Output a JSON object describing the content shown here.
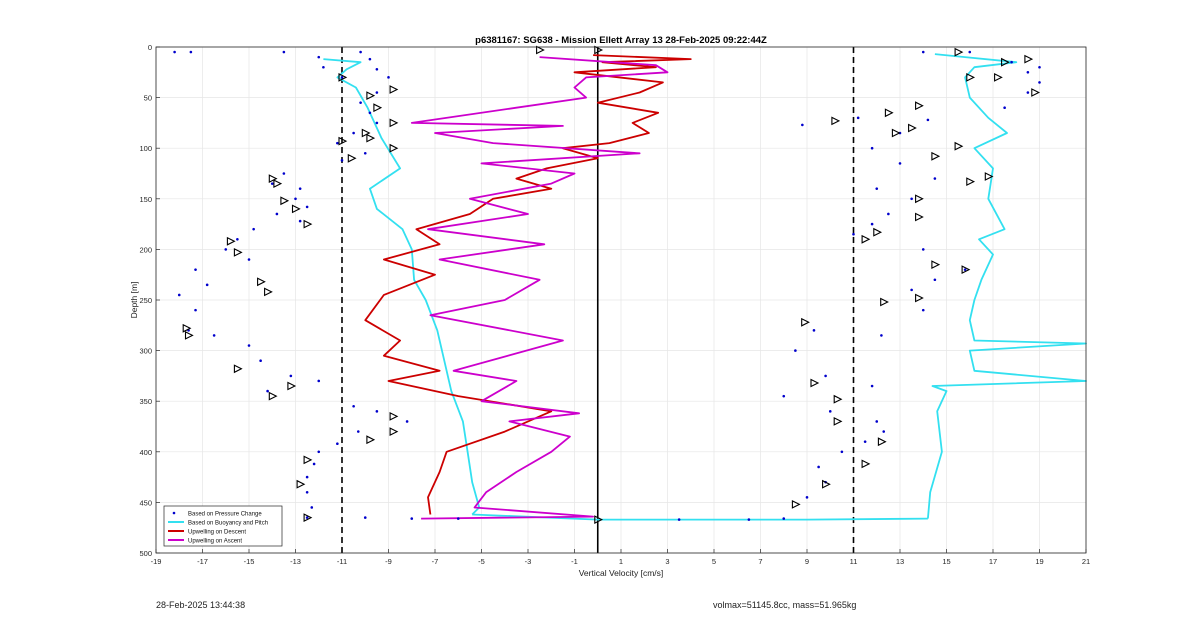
{
  "chart_data": {
    "type": "line",
    "title": "p6381167: SG638 - Mission Ellett Array 13 28-Feb-2025 09:22:44Z",
    "xlabel": "Vertical Velocity [cm/s]",
    "ylabel": "Depth [m]",
    "xlim": [
      -19,
      21
    ],
    "ylim": [
      0,
      500
    ],
    "y_reversed": true,
    "xticks": [
      "-19",
      "-17",
      "-15",
      "-13",
      "-11",
      "-9",
      "-7",
      "-5",
      "-3",
      "-1",
      "1",
      "3",
      "5",
      "7",
      "9",
      "11",
      "13",
      "15",
      "17",
      "19",
      "21"
    ],
    "yticks": [
      "0",
      "50",
      "100",
      "150",
      "200",
      "250",
      "300",
      "350",
      "400",
      "450",
      "500"
    ],
    "grid": true,
    "legend_position": "bottom-left",
    "legend": [
      {
        "label": "Based on Pressure Change",
        "color": "#0000cc",
        "style": "dot"
      },
      {
        "label": "Based on Buoyancy and Pitch",
        "color": "#33e0f0",
        "style": "line"
      },
      {
        "label": "Upwelling on Descent",
        "color": "#cc0000",
        "style": "line"
      },
      {
        "label": "Upwelling on Ascent",
        "color": "#cc00cc",
        "style": "line"
      }
    ],
    "reference_lines": {
      "dashed_x": [
        -11,
        11
      ],
      "solid_x": [
        0
      ]
    },
    "series": [
      {
        "name": "Based on Buoyancy and Pitch",
        "segment": "descent",
        "color": "#33e0f0",
        "points": [
          [
            -11.8,
            12
          ],
          [
            -10.2,
            15
          ],
          [
            -10.8,
            22
          ],
          [
            -11.2,
            30
          ],
          [
            -10.4,
            40
          ],
          [
            -9.9,
            60
          ],
          [
            -9.3,
            90
          ],
          [
            -8.5,
            120
          ],
          [
            -9.8,
            140
          ],
          [
            -9.5,
            160
          ],
          [
            -8.4,
            180
          ],
          [
            -8.0,
            200
          ],
          [
            -7.9,
            230
          ],
          [
            -7.4,
            250
          ],
          [
            -6.9,
            280
          ],
          [
            -6.6,
            310
          ],
          [
            -6.3,
            340
          ],
          [
            -5.8,
            370
          ],
          [
            -5.6,
            400
          ],
          [
            -5.4,
            430
          ],
          [
            -5.1,
            455
          ],
          [
            -5.4,
            462
          ]
        ]
      },
      {
        "name": "Based on Buoyancy and Pitch",
        "segment": "bottom",
        "color": "#33e0f0",
        "points": [
          [
            -5.4,
            462
          ],
          [
            0,
            467
          ],
          [
            9,
            467
          ],
          [
            14.2,
            466
          ]
        ]
      },
      {
        "name": "Based on Buoyancy and Pitch",
        "segment": "ascent",
        "color": "#33e0f0",
        "points": [
          [
            14.2,
            466
          ],
          [
            14.3,
            440
          ],
          [
            14.8,
            400
          ],
          [
            14.6,
            360
          ],
          [
            15.0,
            340
          ],
          [
            14.4,
            335
          ],
          [
            21,
            330
          ],
          [
            16.2,
            320
          ],
          [
            16.0,
            300
          ],
          [
            21,
            293
          ],
          [
            16.2,
            290
          ],
          [
            16.0,
            270
          ],
          [
            16.2,
            250
          ],
          [
            16.5,
            230
          ],
          [
            17.0,
            205
          ],
          [
            16.4,
            190
          ],
          [
            17.5,
            180
          ],
          [
            16.8,
            150
          ],
          [
            17.0,
            120
          ],
          [
            16.2,
            100
          ],
          [
            17.6,
            85
          ],
          [
            16.8,
            70
          ],
          [
            16.0,
            50
          ],
          [
            15.8,
            30
          ],
          [
            16.2,
            20
          ],
          [
            18.0,
            15
          ],
          [
            15.8,
            10
          ],
          [
            14.5,
            7
          ]
        ]
      },
      {
        "name": "Upwelling on Descent",
        "color": "#cc0000",
        "points": [
          [
            -0.2,
            8
          ],
          [
            4,
            12
          ],
          [
            0.2,
            15
          ],
          [
            2.5,
            20
          ],
          [
            -1,
            25
          ],
          [
            2.8,
            35
          ],
          [
            1.8,
            45
          ],
          [
            0,
            55
          ],
          [
            2.6,
            65
          ],
          [
            1.5,
            75
          ],
          [
            2.2,
            85
          ],
          [
            0.5,
            95
          ],
          [
            -1.5,
            100
          ],
          [
            0,
            110
          ],
          [
            -2.2,
            120
          ],
          [
            -3.5,
            130
          ],
          [
            -2.0,
            140
          ],
          [
            -4.5,
            150
          ],
          [
            -5.5,
            165
          ],
          [
            -7.8,
            180
          ],
          [
            -6.8,
            195
          ],
          [
            -9.2,
            210
          ],
          [
            -7.0,
            225
          ],
          [
            -9.2,
            245
          ],
          [
            -10.0,
            270
          ],
          [
            -8.5,
            290
          ],
          [
            -9.2,
            305
          ],
          [
            -6.8,
            320
          ],
          [
            -9.0,
            330
          ],
          [
            -6.0,
            345
          ],
          [
            -2.0,
            360
          ],
          [
            -4.0,
            380
          ],
          [
            -6.5,
            400
          ],
          [
            -6.8,
            420
          ],
          [
            -7.3,
            445
          ],
          [
            -7.2,
            462
          ]
        ]
      },
      {
        "name": "Upwelling on Ascent",
        "color": "#cc00cc",
        "points": [
          [
            -7.6,
            466
          ],
          [
            -0.2,
            464
          ],
          [
            -5.3,
            455
          ],
          [
            -4.8,
            440
          ],
          [
            -3.5,
            420
          ],
          [
            -2.0,
            400
          ],
          [
            -1.2,
            385
          ],
          [
            -3.8,
            370
          ],
          [
            -0.8,
            362
          ],
          [
            -5.0,
            350
          ],
          [
            -3.5,
            330
          ],
          [
            -6.2,
            320
          ],
          [
            -1.5,
            290
          ],
          [
            -7.2,
            265
          ],
          [
            -4.0,
            250
          ],
          [
            -2.5,
            230
          ],
          [
            -6.8,
            210
          ],
          [
            -2.3,
            195
          ],
          [
            -7.3,
            180
          ],
          [
            -3.0,
            165
          ],
          [
            -5.5,
            150
          ],
          [
            -2.0,
            135
          ],
          [
            -1.0,
            125
          ],
          [
            -5.0,
            115
          ],
          [
            1.8,
            105
          ],
          [
            -4.5,
            95
          ],
          [
            -7.0,
            85
          ],
          [
            -1.5,
            78
          ],
          [
            -8.0,
            75
          ],
          [
            -3.5,
            60
          ],
          [
            -0.5,
            50
          ],
          [
            -1.0,
            40
          ],
          [
            -0.5,
            30
          ],
          [
            3.0,
            25
          ],
          [
            2.5,
            18
          ],
          [
            -2.5,
            10
          ]
        ]
      }
    ],
    "scatter": {
      "name": "Based on Pressure Change",
      "color": "#0000cc",
      "points": [
        [
          -18.2,
          5
        ],
        [
          -17.5,
          5
        ],
        [
          -13.5,
          5
        ],
        [
          -12.0,
          10
        ],
        [
          -11.8,
          20
        ],
        [
          -11.0,
          30
        ],
        [
          -10.2,
          5
        ],
        [
          -9.8,
          12
        ],
        [
          -9.5,
          22
        ],
        [
          -9.0,
          30
        ],
        [
          -9.5,
          45
        ],
        [
          -10.2,
          55
        ],
        [
          -9.8,
          65
        ],
        [
          -9.5,
          75
        ],
        [
          -10.5,
          85
        ],
        [
          -11.2,
          95
        ],
        [
          -10.0,
          105
        ],
        [
          -11.0,
          112
        ],
        [
          -13.5,
          125
        ],
        [
          -14.0,
          135
        ],
        [
          -12.8,
          140
        ],
        [
          -13.0,
          150
        ],
        [
          -12.5,
          158
        ],
        [
          -13.8,
          165
        ],
        [
          -12.8,
          172
        ],
        [
          -14.8,
          180
        ],
        [
          -15.5,
          190
        ],
        [
          -16.0,
          200
        ],
        [
          -15.0,
          210
        ],
        [
          -17.3,
          220
        ],
        [
          -16.8,
          235
        ],
        [
          -18.0,
          245
        ],
        [
          -17.3,
          260
        ],
        [
          -17.6,
          280
        ],
        [
          -16.5,
          285
        ],
        [
          -15.0,
          295
        ],
        [
          -14.5,
          310
        ],
        [
          -13.2,
          325
        ],
        [
          -12.0,
          330
        ],
        [
          -14.2,
          340
        ],
        [
          -10.5,
          355
        ],
        [
          -9.5,
          360
        ],
        [
          -8.2,
          370
        ],
        [
          -10.3,
          380
        ],
        [
          -11.2,
          392
        ],
        [
          -12.0,
          400
        ],
        [
          -12.2,
          412
        ],
        [
          -12.5,
          425
        ],
        [
          -12.5,
          440
        ],
        [
          -12.3,
          455
        ],
        [
          -12.5,
          465
        ],
        [
          -10.0,
          465
        ],
        [
          -8.0,
          466
        ],
        [
          -6.0,
          466
        ],
        [
          3.5,
          467
        ],
        [
          6.5,
          467
        ],
        [
          8.0,
          466
        ],
        [
          9.0,
          445
        ],
        [
          9.8,
          430
        ],
        [
          9.5,
          415
        ],
        [
          10.5,
          400
        ],
        [
          11.5,
          390
        ],
        [
          12.3,
          380
        ],
        [
          12.0,
          370
        ],
        [
          10.0,
          360
        ],
        [
          8.0,
          345
        ],
        [
          11.8,
          335
        ],
        [
          9.8,
          325
        ],
        [
          8.5,
          300
        ],
        [
          9.3,
          280
        ],
        [
          12.2,
          285
        ],
        [
          14.0,
          260
        ],
        [
          13.5,
          240
        ],
        [
          14.5,
          230
        ],
        [
          15.8,
          220
        ],
        [
          14.0,
          200
        ],
        [
          11.0,
          185
        ],
        [
          11.8,
          175
        ],
        [
          12.5,
          165
        ],
        [
          13.5,
          150
        ],
        [
          12.0,
          140
        ],
        [
          14.5,
          130
        ],
        [
          13.0,
          115
        ],
        [
          11.8,
          100
        ],
        [
          13.0,
          85
        ],
        [
          14.2,
          72
        ],
        [
          11.2,
          70
        ],
        [
          8.8,
          77
        ],
        [
          17.5,
          60
        ],
        [
          18.5,
          45
        ],
        [
          19.0,
          35
        ],
        [
          18.5,
          25
        ],
        [
          17.8,
          15
        ],
        [
          16.0,
          5
        ],
        [
          14.0,
          5
        ],
        [
          19.0,
          20
        ]
      ]
    },
    "markers": {
      "style": "triangle",
      "color": "#000000",
      "points": [
        [
          -2.5,
          3
        ],
        [
          0,
          3
        ],
        [
          -11.0,
          30
        ],
        [
          -9.8,
          48
        ],
        [
          -8.8,
          42
        ],
        [
          -9.5,
          60
        ],
        [
          -8.8,
          75
        ],
        [
          -10.0,
          85
        ],
        [
          -9.8,
          90
        ],
        [
          -8.8,
          100
        ],
        [
          -11.0,
          93
        ],
        [
          -10.6,
          110
        ],
        [
          -14.0,
          130
        ],
        [
          -13.8,
          135
        ],
        [
          -13.5,
          152
        ],
        [
          -12.5,
          175
        ],
        [
          -13.0,
          160
        ],
        [
          -15.8,
          192
        ],
        [
          -15.5,
          203
        ],
        [
          -14.5,
          232
        ],
        [
          -14.2,
          242
        ],
        [
          -17.7,
          278
        ],
        [
          -17.6,
          285
        ],
        [
          -15.5,
          318
        ],
        [
          -13.2,
          335
        ],
        [
          -14.0,
          345
        ],
        [
          -8.8,
          365
        ],
        [
          -8.8,
          380
        ],
        [
          -9.8,
          388
        ],
        [
          -12.5,
          408
        ],
        [
          -12.8,
          432
        ],
        [
          -12.5,
          465
        ],
        [
          0,
          467
        ],
        [
          8.5,
          452
        ],
        [
          9.8,
          432
        ],
        [
          11.5,
          412
        ],
        [
          12.2,
          390
        ],
        [
          10.3,
          370
        ],
        [
          10.3,
          348
        ],
        [
          9.3,
          332
        ],
        [
          8.9,
          272
        ],
        [
          12.3,
          252
        ],
        [
          13.8,
          248
        ],
        [
          14.5,
          215
        ],
        [
          15.8,
          220
        ],
        [
          11.5,
          190
        ],
        [
          12.0,
          183
        ],
        [
          13.8,
          168
        ],
        [
          13.8,
          150
        ],
        [
          16.0,
          133
        ],
        [
          16.8,
          128
        ],
        [
          14.5,
          108
        ],
        [
          15.5,
          98
        ],
        [
          13.5,
          80
        ],
        [
          12.8,
          85
        ],
        [
          10.2,
          73
        ],
        [
          13.8,
          58
        ],
        [
          12.5,
          65
        ],
        [
          17.2,
          30
        ],
        [
          16.0,
          30
        ],
        [
          17.5,
          15
        ],
        [
          18.5,
          12
        ],
        [
          15.5,
          5
        ],
        [
          18.8,
          45
        ]
      ]
    }
  },
  "footer": {
    "timestamp": "28-Feb-2025 13:44:38",
    "vehicle_info": "volmax=51145.8cc, mass=51.965kg"
  }
}
